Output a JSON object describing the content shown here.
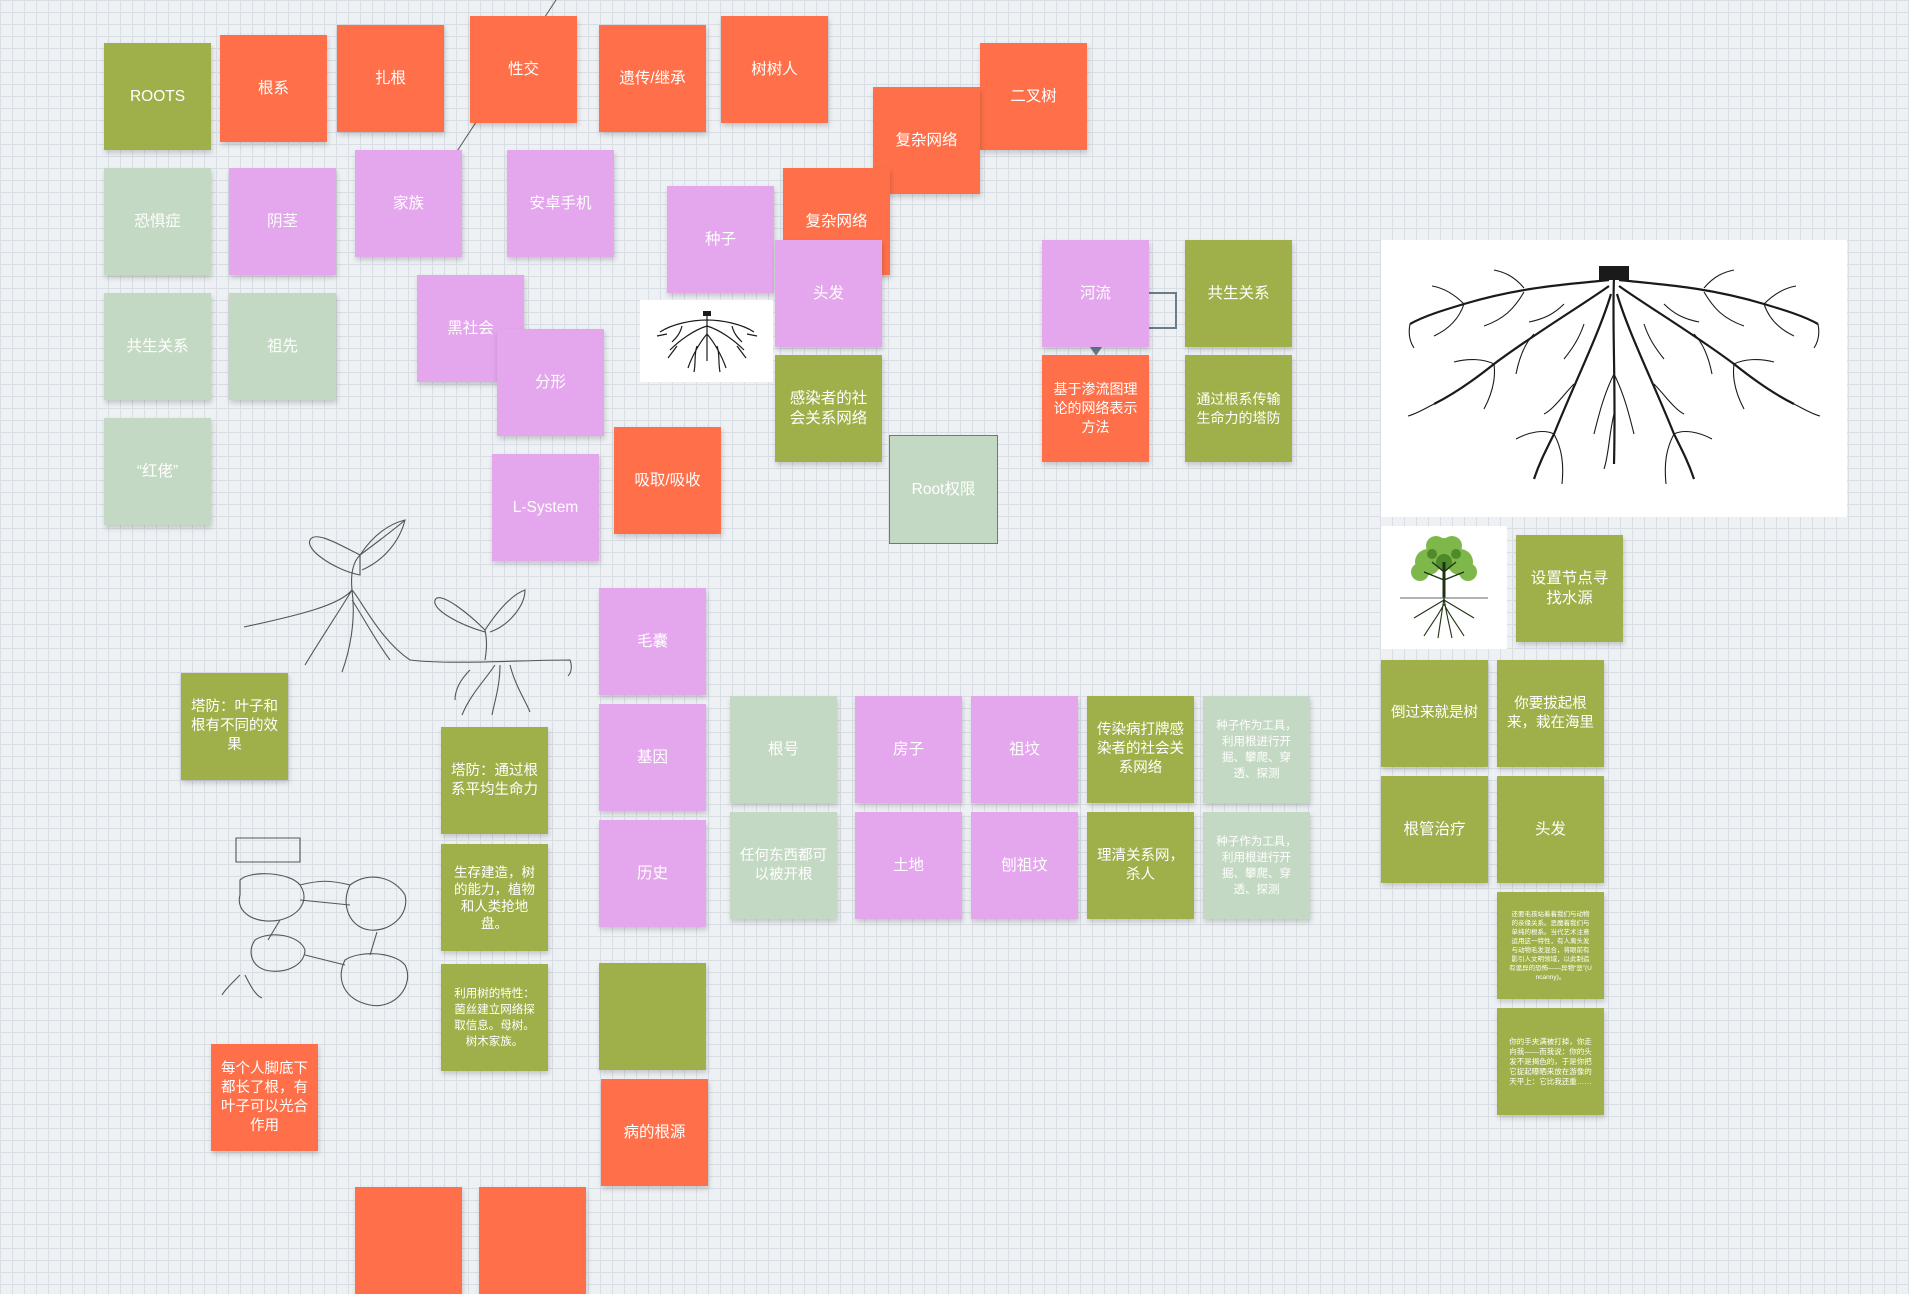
{
  "board": {
    "notes": {
      "roots": "ROOTS",
      "genxi": "根系",
      "zhagen": "扎根",
      "xingjiao": "性交",
      "yichuan": "遗传/继承",
      "shushuren": "树树人",
      "fuzawangluo1": "复杂网络",
      "erchashu": "二叉树",
      "fuzawangluo2": "复杂网络",
      "kongjuzheng": "恐惧症",
      "yinjing": "阴茎",
      "jiazu": "家族",
      "anzhuo": "安卓手机",
      "zhongzi": "种子",
      "toufa1": "头发",
      "gongsheng1": "共生关系",
      "zuxian": "祖先",
      "heishehui": "黑社会",
      "fenxing": "分形",
      "ganran": "感染者的社会关系网络",
      "heliu": "河流",
      "gongsheng2": "共生关系",
      "shentou": "基于渗流图理论的网络表示方法",
      "tongguo": "通过根系传输生命力的塔防",
      "honglao": "“红佬”",
      "lsystem": "L-System",
      "xishou": "吸取/吸收",
      "rootquan": "Root权限",
      "shezhi": "设置节点寻找水源",
      "daoguo": "倒过来就是树",
      "niyao": "你要拔起根来，栽在海里",
      "maonang": "毛囊",
      "tafang1": "塔防：叶子和根有不同的效果",
      "tafang2": "塔防：通过根系平均生命力",
      "jiyin": "基因",
      "genhao": "根号",
      "fangzi": "房子",
      "zuwen": "祖坟",
      "chuanranbing": "传染病打牌感染者的社会关系网络",
      "zhongzigongju1": "种子作为工具，利用根进行开掘、攀爬、穿透、探测",
      "genguan": "根管治疗",
      "toufa2": "头发",
      "shengcun": "生存建造，树的能力，植物和人类抢地盘。",
      "lishi": "历史",
      "renhe": "任何东西都可以被开根",
      "tudi": "土地",
      "paozuwen": "刨祖坟",
      "liqing": "理清关系网，杀人",
      "zhongzigongju2": "种子作为工具，利用根进行开掘、攀爬、穿透、探测",
      "longtext1": "还要毛孩站着着我们与动物的亲缘关系。恶魔着我们与单纯的根系。当代艺术注意运用这一特性，有人离头发与动物毛发混合，将眼前有影引人文明领域，以此制造有诡异的恐怖——异物“恶”(Uncanny)。",
      "yongshu": "利用树的特性：菌丝建立网络探取信息。母树。树木家族。",
      "longtext2": "你的手夹满被打掉，你走向我——而我说：你的头发不是揭色的，于是你把它捉起曝晒来放在游像的天平上：它比我还重……",
      "meigeren": "每个人脚底下都长了根，有叶子可以光合作用",
      "bingde": "病的根源"
    },
    "images": {
      "small_roots": "roots-illustration",
      "large_roots": "roots-illustration",
      "tree": "tree-with-roots-illustration"
    }
  }
}
